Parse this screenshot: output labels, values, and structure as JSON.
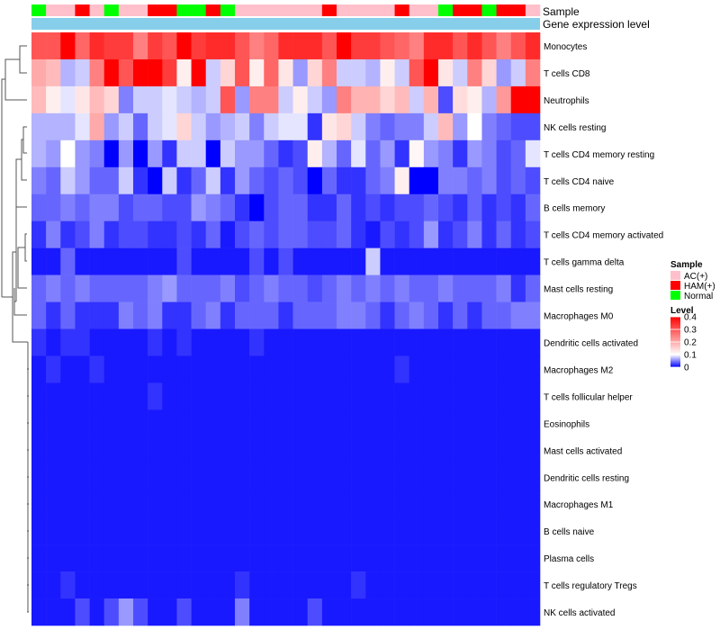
{
  "chart_data": {
    "type": "heatmap",
    "title": "",
    "annotation_labels": {
      "sample": "Sample",
      "expression": "Gene expression level"
    },
    "legend": {
      "sample_title": "Sample",
      "sample_entries": [
        {
          "name": "AC(+)",
          "color": "#ffc0cb"
        },
        {
          "name": "HAM(+)",
          "color": "#ff0000"
        },
        {
          "name": "Normal",
          "color": "#00ff00"
        }
      ],
      "level_title": "Level",
      "level_ticks": [
        "0.4",
        "0.3",
        "0.2",
        "0.1",
        "0"
      ],
      "placement": "right"
    },
    "color_scale": {
      "min": 0,
      "mid": 0.1,
      "max": 0.4,
      "low": "#0000ff",
      "midcolor": "#ffffff",
      "high": "#ff0000"
    },
    "columns": 35,
    "sample_groups": [
      "Normal",
      "AC(+)",
      "AC(+)",
      "HAM(+)",
      "AC(+)",
      "Normal",
      "AC(+)",
      "AC(+)",
      "HAM(+)",
      "HAM(+)",
      "Normal",
      "Normal",
      "HAM(+)",
      "Normal",
      "AC(+)",
      "AC(+)",
      "AC(+)",
      "AC(+)",
      "AC(+)",
      "AC(+)",
      "HAM(+)",
      "AC(+)",
      "AC(+)",
      "AC(+)",
      "AC(+)",
      "HAM(+)",
      "AC(+)",
      "AC(+)",
      "Normal",
      "HAM(+)",
      "HAM(+)",
      "Normal",
      "HAM(+)",
      "HAM(+)",
      "AC(+)"
    ],
    "rows": [
      {
        "name": "Monocytes",
        "values": [
          0.3,
          0.3,
          0.4,
          0.28,
          0.35,
          0.33,
          0.33,
          0.25,
          0.33,
          0.3,
          0.4,
          0.33,
          0.35,
          0.35,
          0.3,
          0.25,
          0.28,
          0.35,
          0.35,
          0.35,
          0.3,
          0.4,
          0.33,
          0.33,
          0.3,
          0.28,
          0.25,
          0.35,
          0.35,
          0.3,
          0.35,
          0.3,
          0.25,
          0.3,
          0.35
        ]
      },
      {
        "name": "T cells CD8",
        "values": [
          0.2,
          0.18,
          0.07,
          0.08,
          0.25,
          0.4,
          0.3,
          0.4,
          0.4,
          0.33,
          0.12,
          0.4,
          0.08,
          0.15,
          0.3,
          0.12,
          0.28,
          0.13,
          0.06,
          0.15,
          0.25,
          0.08,
          0.08,
          0.07,
          0.12,
          0.08,
          0.3,
          0.4,
          0.13,
          0.08,
          0.25,
          0.15,
          0.06,
          0.08,
          0.25
        ]
      },
      {
        "name": "Neutrophils",
        "values": [
          0.18,
          0.12,
          0.09,
          0.13,
          0.18,
          0.15,
          0.05,
          0.08,
          0.08,
          0.09,
          0.08,
          0.07,
          0.08,
          0.3,
          0.06,
          0.25,
          0.25,
          0.08,
          0.12,
          0.08,
          0.06,
          0.25,
          0.19,
          0.19,
          0.15,
          0.18,
          0.08,
          0.19,
          0.03,
          0.14,
          0.12,
          0.07,
          0.22,
          0.4,
          0.4
        ]
      },
      {
        "name": "NK cells resting",
        "values": [
          0.07,
          0.07,
          0.07,
          0.09,
          0.2,
          0.06,
          0.08,
          0.04,
          0.08,
          0.09,
          0.15,
          0.08,
          0.06,
          0.07,
          0.08,
          0.05,
          0.08,
          0.09,
          0.09,
          0.02,
          0.13,
          0.15,
          0.08,
          0.05,
          0.04,
          0.05,
          0.05,
          0.08,
          0.18,
          0.06,
          0.1,
          0.05,
          0.04,
          0.03,
          0.03
        ]
      },
      {
        "name": "T cells CD4 memory resting",
        "values": [
          0.07,
          0.06,
          0.1,
          0.06,
          0.05,
          0.0,
          0.06,
          0.0,
          0.06,
          0.02,
          0.08,
          0.08,
          0.0,
          0.08,
          0.06,
          0.06,
          0.04,
          0.02,
          0.03,
          0.12,
          0.07,
          0.04,
          0.09,
          0.04,
          0.06,
          0.02,
          0.11,
          0.06,
          0.05,
          0.02,
          0.06,
          0.05,
          0.03,
          0.04,
          0.09
        ]
      },
      {
        "name": "T cells CD4 naive",
        "values": [
          0.05,
          0.04,
          0.08,
          0.06,
          0.04,
          0.04,
          0.08,
          0.02,
          0.0,
          0.08,
          0.02,
          0.04,
          0.08,
          0.02,
          0.06,
          0.04,
          0.03,
          0.04,
          0.03,
          0.0,
          0.04,
          0.02,
          0.02,
          0.04,
          0.05,
          0.12,
          0.0,
          0.0,
          0.05,
          0.05,
          0.04,
          0.05,
          0.03,
          0.04,
          0.03
        ]
      },
      {
        "name": "B cells memory",
        "values": [
          0.04,
          0.04,
          0.05,
          0.04,
          0.05,
          0.05,
          0.03,
          0.04,
          0.04,
          0.03,
          0.03,
          0.06,
          0.05,
          0.04,
          0.02,
          0.0,
          0.03,
          0.04,
          0.04,
          0.02,
          0.02,
          0.04,
          0.02,
          0.03,
          0.02,
          0.03,
          0.03,
          0.04,
          0.03,
          0.02,
          0.04,
          0.02,
          0.03,
          0.02,
          0.04
        ]
      },
      {
        "name": "T cells CD4 memory activated",
        "values": [
          0.02,
          0.05,
          0.02,
          0.03,
          0.05,
          0.02,
          0.03,
          0.03,
          0.02,
          0.02,
          0.03,
          0.02,
          0.04,
          0.01,
          0.03,
          0.04,
          0.03,
          0.04,
          0.04,
          0.03,
          0.03,
          0.04,
          0.02,
          0.01,
          0.03,
          0.02,
          0.03,
          0.06,
          0.02,
          0.03,
          0.05,
          0.02,
          0.04,
          0.02,
          0.03
        ]
      },
      {
        "name": "T cells gamma delta",
        "values": [
          0.01,
          0.01,
          0.04,
          0.01,
          0.01,
          0.01,
          0.01,
          0.01,
          0.01,
          0.01,
          0.03,
          0.01,
          0.01,
          0.01,
          0.01,
          0.03,
          0.01,
          0.03,
          0.01,
          0.01,
          0.01,
          0.01,
          0.01,
          0.08,
          0.01,
          0.01,
          0.01,
          0.01,
          0.01,
          0.01,
          0.01,
          0.01,
          0.01,
          0.01,
          0.01
        ]
      },
      {
        "name": "Mast cells resting",
        "values": [
          0.04,
          0.05,
          0.04,
          0.05,
          0.04,
          0.04,
          0.04,
          0.04,
          0.05,
          0.06,
          0.04,
          0.04,
          0.04,
          0.05,
          0.03,
          0.04,
          0.05,
          0.04,
          0.04,
          0.03,
          0.04,
          0.05,
          0.04,
          0.05,
          0.04,
          0.05,
          0.04,
          0.04,
          0.05,
          0.04,
          0.04,
          0.04,
          0.05,
          0.02,
          0.04
        ]
      },
      {
        "name": "Macrophages M0",
        "values": [
          0.04,
          0.02,
          0.04,
          0.02,
          0.02,
          0.02,
          0.05,
          0.04,
          0.05,
          0.02,
          0.02,
          0.04,
          0.05,
          0.02,
          0.04,
          0.04,
          0.04,
          0.02,
          0.04,
          0.04,
          0.04,
          0.05,
          0.05,
          0.04,
          0.02,
          0.04,
          0.05,
          0.04,
          0.02,
          0.04,
          0.02,
          0.04,
          0.04,
          0.05,
          0.05
        ]
      },
      {
        "name": "Dendritic cells activated",
        "values": [
          0.02,
          0.01,
          0.02,
          0.02,
          0.01,
          0.01,
          0.01,
          0.01,
          0.02,
          0.01,
          0.02,
          0.01,
          0.01,
          0.01,
          0.01,
          0.02,
          0.01,
          0.01,
          0.01,
          0.01,
          0.01,
          0.01,
          0.01,
          0.01,
          0.01,
          0.01,
          0.01,
          0.01,
          0.01,
          0.01,
          0.01,
          0.01,
          0.01,
          0.01,
          0.01
        ]
      },
      {
        "name": "Macrophages M2",
        "values": [
          0.01,
          0.02,
          0.01,
          0.01,
          0.02,
          0.01,
          0.01,
          0.01,
          0.01,
          0.01,
          0.01,
          0.01,
          0.01,
          0.01,
          0.01,
          0.01,
          0.01,
          0.01,
          0.01,
          0.01,
          0.01,
          0.01,
          0.01,
          0.01,
          0.01,
          0.02,
          0.01,
          0.01,
          0.01,
          0.01,
          0.01,
          0.01,
          0.01,
          0.01,
          0.01
        ]
      },
      {
        "name": "T cells follicular helper",
        "values": [
          0.01,
          0.01,
          0.01,
          0.01,
          0.01,
          0.01,
          0.01,
          0.01,
          0.02,
          0.01,
          0.01,
          0.01,
          0.01,
          0.01,
          0.01,
          0.01,
          0.01,
          0.01,
          0.01,
          0.01,
          0.01,
          0.01,
          0.01,
          0.01,
          0.01,
          0.01,
          0.01,
          0.01,
          0.01,
          0.01,
          0.01,
          0.01,
          0.01,
          0.01,
          0.01
        ]
      },
      {
        "name": "Eosinophils",
        "values": [
          0.01,
          0.01,
          0.01,
          0.01,
          0.01,
          0.01,
          0.01,
          0.01,
          0.01,
          0.01,
          0.01,
          0.01,
          0.01,
          0.01,
          0.01,
          0.01,
          0.01,
          0.01,
          0.01,
          0.01,
          0.01,
          0.01,
          0.01,
          0.01,
          0.01,
          0.01,
          0.01,
          0.01,
          0.01,
          0.01,
          0.01,
          0.01,
          0.01,
          0.01,
          0.01
        ]
      },
      {
        "name": "Mast cells activated",
        "values": [
          0.01,
          0.01,
          0.01,
          0.01,
          0.01,
          0.01,
          0.01,
          0.01,
          0.01,
          0.01,
          0.01,
          0.01,
          0.01,
          0.01,
          0.01,
          0.01,
          0.01,
          0.01,
          0.01,
          0.01,
          0.01,
          0.01,
          0.01,
          0.01,
          0.01,
          0.01,
          0.01,
          0.01,
          0.01,
          0.01,
          0.01,
          0.01,
          0.01,
          0.01,
          0.01
        ]
      },
      {
        "name": "Dendritic cells resting",
        "values": [
          0.01,
          0.01,
          0.01,
          0.01,
          0.01,
          0.01,
          0.01,
          0.01,
          0.01,
          0.01,
          0.01,
          0.01,
          0.01,
          0.01,
          0.01,
          0.01,
          0.01,
          0.01,
          0.01,
          0.01,
          0.01,
          0.01,
          0.01,
          0.01,
          0.01,
          0.01,
          0.01,
          0.01,
          0.01,
          0.01,
          0.01,
          0.01,
          0.01,
          0.01,
          0.01
        ]
      },
      {
        "name": "Macrophages M1",
        "values": [
          0.01,
          0.01,
          0.01,
          0.01,
          0.01,
          0.01,
          0.01,
          0.01,
          0.01,
          0.01,
          0.01,
          0.01,
          0.01,
          0.01,
          0.01,
          0.01,
          0.01,
          0.01,
          0.01,
          0.01,
          0.01,
          0.01,
          0.01,
          0.01,
          0.01,
          0.01,
          0.01,
          0.01,
          0.01,
          0.01,
          0.01,
          0.01,
          0.01,
          0.01,
          0.01
        ]
      },
      {
        "name": "B cells naive",
        "values": [
          0.01,
          0.01,
          0.01,
          0.01,
          0.01,
          0.01,
          0.01,
          0.01,
          0.01,
          0.01,
          0.01,
          0.01,
          0.01,
          0.01,
          0.01,
          0.01,
          0.01,
          0.01,
          0.01,
          0.01,
          0.01,
          0.01,
          0.01,
          0.01,
          0.01,
          0.01,
          0.01,
          0.01,
          0.01,
          0.01,
          0.01,
          0.01,
          0.01,
          0.01,
          0.01
        ]
      },
      {
        "name": "Plasma cells",
        "values": [
          0.01,
          0.01,
          0.01,
          0.01,
          0.01,
          0.01,
          0.01,
          0.01,
          0.01,
          0.01,
          0.01,
          0.01,
          0.01,
          0.01,
          0.01,
          0.01,
          0.01,
          0.01,
          0.01,
          0.01,
          0.01,
          0.01,
          0.01,
          0.01,
          0.01,
          0.01,
          0.01,
          0.01,
          0.01,
          0.01,
          0.01,
          0.01,
          0.01,
          0.01,
          0.01
        ]
      },
      {
        "name": "T cells regulatory  Tregs",
        "values": [
          0.01,
          0.01,
          0.02,
          0.01,
          0.01,
          0.01,
          0.01,
          0.01,
          0.01,
          0.01,
          0.01,
          0.01,
          0.01,
          0.01,
          0.02,
          0.01,
          0.01,
          0.01,
          0.01,
          0.01,
          0.01,
          0.01,
          0.02,
          0.01,
          0.01,
          0.01,
          0.01,
          0.01,
          0.01,
          0.01,
          0.01,
          0.01,
          0.01,
          0.01,
          0.01
        ]
      },
      {
        "name": "NK cells activated",
        "values": [
          0.01,
          0.01,
          0.01,
          0.03,
          0.01,
          0.03,
          0.06,
          0.03,
          0.01,
          0.01,
          0.03,
          0.01,
          0.01,
          0.01,
          0.05,
          0.01,
          0.01,
          0.01,
          0.01,
          0.03,
          0.01,
          0.01,
          0.01,
          0.01,
          0.01,
          0.01,
          0.01,
          0.01,
          0.01,
          0.01,
          0.01,
          0.01,
          0.01,
          0.01,
          0.01
        ]
      }
    ]
  }
}
